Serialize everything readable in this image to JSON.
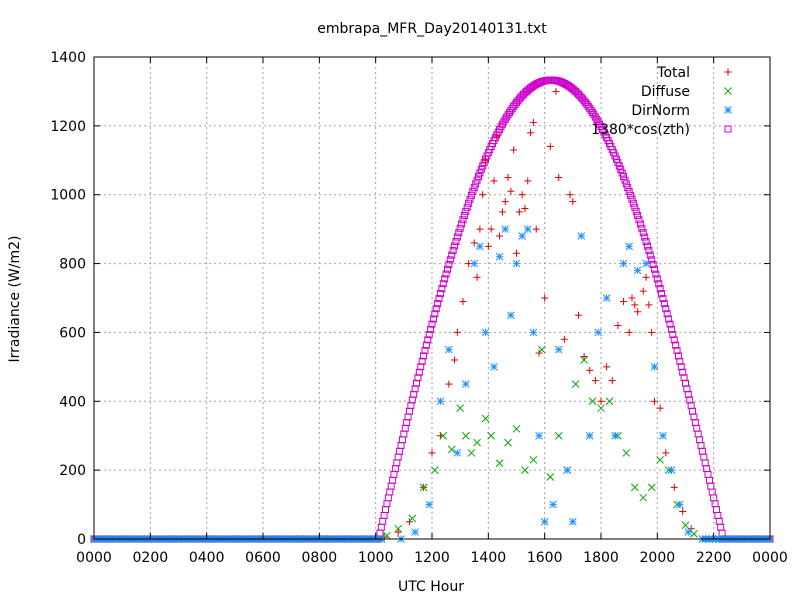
{
  "chart_data": {
    "type": "scatter",
    "title": "embrapa_MFR_Day20140131.txt",
    "xlabel": "UTC Hour",
    "ylabel": "Irradiance (W/m2)",
    "xlim": [
      0,
      24
    ],
    "ylim": [
      0,
      1400
    ],
    "x_tick_labels": [
      "0000",
      "0200",
      "0400",
      "0600",
      "0800",
      "1000",
      "1200",
      "1400",
      "1600",
      "1800",
      "2000",
      "2200",
      "0000"
    ],
    "y_tick_values": [
      0,
      200,
      400,
      600,
      800,
      1000,
      1200,
      1400
    ],
    "grid": true,
    "legend_position": "top-right",
    "series": [
      {
        "name": "Total",
        "marker": "plus",
        "color": "#dd0000",
        "points": [
          [
            10.3,
            5
          ],
          [
            10.8,
            20
          ],
          [
            11.2,
            50
          ],
          [
            11.7,
            150
          ],
          [
            12.0,
            250
          ],
          [
            12.3,
            300
          ],
          [
            12.6,
            450
          ],
          [
            12.8,
            520
          ],
          [
            12.9,
            600
          ],
          [
            13.1,
            690
          ],
          [
            13.3,
            800
          ],
          [
            13.5,
            860
          ],
          [
            13.6,
            760
          ],
          [
            13.7,
            900
          ],
          [
            13.8,
            1000
          ],
          [
            13.9,
            1100
          ],
          [
            14.0,
            850
          ],
          [
            14.1,
            900
          ],
          [
            14.2,
            1040
          ],
          [
            14.3,
            1170
          ],
          [
            14.4,
            880
          ],
          [
            14.5,
            950
          ],
          [
            14.6,
            980
          ],
          [
            14.7,
            1050
          ],
          [
            14.8,
            1010
          ],
          [
            14.9,
            1130
          ],
          [
            15.0,
            830
          ],
          [
            15.1,
            950
          ],
          [
            15.2,
            1000
          ],
          [
            15.3,
            960
          ],
          [
            15.4,
            1040
          ],
          [
            15.5,
            1180
          ],
          [
            15.6,
            1210
          ],
          [
            15.7,
            900
          ],
          [
            15.8,
            540
          ],
          [
            16.0,
            700
          ],
          [
            16.2,
            1140
          ],
          [
            16.4,
            1300
          ],
          [
            16.5,
            1050
          ],
          [
            16.7,
            580
          ],
          [
            16.9,
            1000
          ],
          [
            17.0,
            980
          ],
          [
            17.2,
            650
          ],
          [
            17.4,
            530
          ],
          [
            17.6,
            490
          ],
          [
            17.8,
            460
          ],
          [
            18.0,
            400
          ],
          [
            18.2,
            500
          ],
          [
            18.4,
            460
          ],
          [
            18.6,
            620
          ],
          [
            18.8,
            690
          ],
          [
            19.0,
            600
          ],
          [
            19.1,
            700
          ],
          [
            19.2,
            680
          ],
          [
            19.3,
            660
          ],
          [
            19.5,
            720
          ],
          [
            19.6,
            760
          ],
          [
            19.7,
            680
          ],
          [
            19.8,
            600
          ],
          [
            19.9,
            400
          ],
          [
            20.1,
            380
          ],
          [
            20.3,
            250
          ],
          [
            20.6,
            150
          ],
          [
            20.9,
            80
          ],
          [
            21.2,
            30
          ]
        ]
      },
      {
        "name": "Diffuse",
        "marker": "cross",
        "color": "#00aa00",
        "points": [
          [
            10.4,
            10
          ],
          [
            10.8,
            30
          ],
          [
            11.3,
            60
          ],
          [
            11.7,
            150
          ],
          [
            12.1,
            200
          ],
          [
            12.4,
            300
          ],
          [
            12.7,
            260
          ],
          [
            13.0,
            380
          ],
          [
            13.2,
            300
          ],
          [
            13.4,
            250
          ],
          [
            13.6,
            280
          ],
          [
            13.9,
            350
          ],
          [
            14.1,
            300
          ],
          [
            14.4,
            220
          ],
          [
            14.7,
            280
          ],
          [
            15.0,
            320
          ],
          [
            15.3,
            200
          ],
          [
            15.6,
            230
          ],
          [
            15.9,
            550
          ],
          [
            16.2,
            180
          ],
          [
            16.5,
            300
          ],
          [
            16.8,
            200
          ],
          [
            17.1,
            450
          ],
          [
            17.4,
            520
          ],
          [
            17.7,
            400
          ],
          [
            18.0,
            380
          ],
          [
            18.3,
            400
          ],
          [
            18.6,
            300
          ],
          [
            18.9,
            250
          ],
          [
            19.2,
            150
          ],
          [
            19.5,
            120
          ],
          [
            19.8,
            150
          ],
          [
            20.1,
            230
          ],
          [
            20.4,
            200
          ],
          [
            20.7,
            100
          ],
          [
            21.0,
            40
          ],
          [
            21.3,
            15
          ]
        ]
      },
      {
        "name": "DirNorm",
        "marker": "star",
        "color": "#1e90ff",
        "points": [
          [
            10.9,
            0
          ],
          [
            11.4,
            20
          ],
          [
            11.9,
            100
          ],
          [
            12.3,
            400
          ],
          [
            12.6,
            550
          ],
          [
            12.9,
            250
          ],
          [
            13.2,
            450
          ],
          [
            13.5,
            800
          ],
          [
            13.7,
            850
          ],
          [
            13.9,
            600
          ],
          [
            14.2,
            500
          ],
          [
            14.4,
            820
          ],
          [
            14.6,
            900
          ],
          [
            14.8,
            650
          ],
          [
            15.0,
            800
          ],
          [
            15.2,
            880
          ],
          [
            15.4,
            900
          ],
          [
            15.6,
            600
          ],
          [
            15.8,
            300
          ],
          [
            16.0,
            50
          ],
          [
            16.3,
            100
          ],
          [
            16.5,
            550
          ],
          [
            16.8,
            200
          ],
          [
            17.0,
            50
          ],
          [
            17.3,
            880
          ],
          [
            17.6,
            300
          ],
          [
            17.9,
            600
          ],
          [
            18.2,
            700
          ],
          [
            18.5,
            300
          ],
          [
            18.8,
            800
          ],
          [
            19.0,
            850
          ],
          [
            19.3,
            780
          ],
          [
            19.6,
            800
          ],
          [
            19.9,
            500
          ],
          [
            20.2,
            300
          ],
          [
            20.5,
            200
          ],
          [
            20.8,
            100
          ],
          [
            21.1,
            20
          ]
        ]
      },
      {
        "name": "1380*cos(zth)",
        "marker": "open-square",
        "color": "#cc00cc",
        "peak": 1333,
        "sunrise": 10.1,
        "sunset": 22.35
      }
    ]
  }
}
